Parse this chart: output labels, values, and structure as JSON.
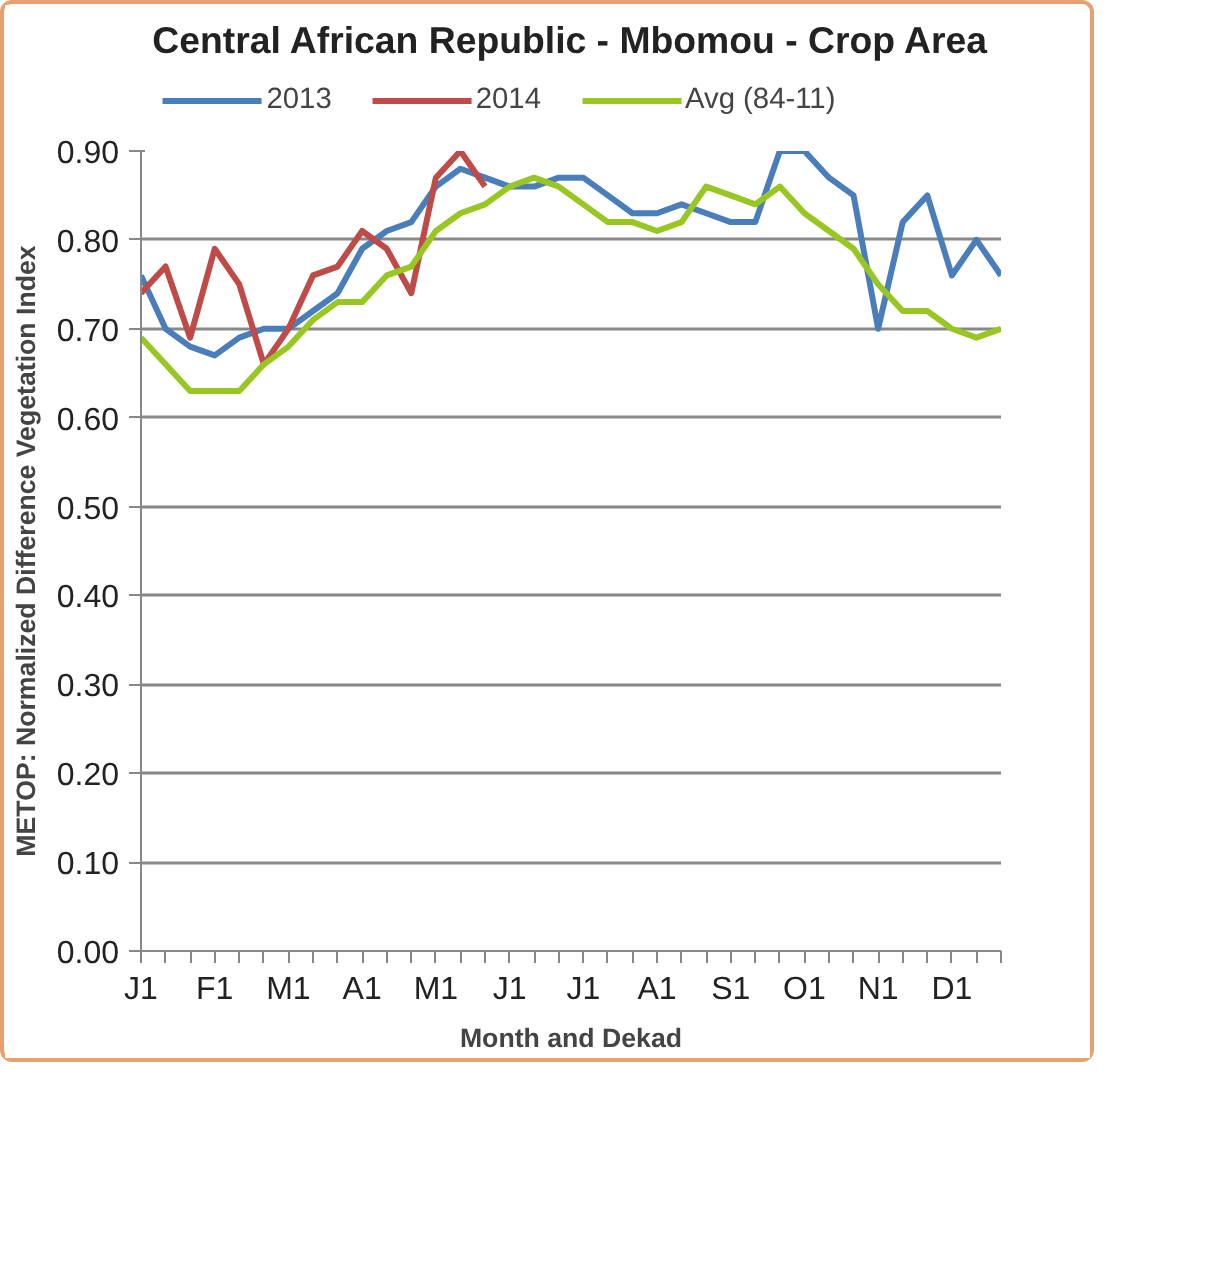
{
  "chart_data": {
    "type": "line",
    "title": "Central African Republic - Mbomou - Crop Area",
    "xlabel": "Month and Dekad",
    "ylabel": "METOP: Normalized Difference Vegetation Index",
    "categories": [
      "J1",
      null,
      null,
      "F1",
      null,
      null,
      "M1",
      null,
      null,
      "A1",
      null,
      null,
      "M1",
      null,
      null,
      "J1",
      null,
      null,
      "J1",
      null,
      null,
      "A1",
      null,
      null,
      "S1",
      null,
      null,
      "O1",
      null,
      null,
      "N1",
      null,
      null,
      "D1",
      null,
      null
    ],
    "series": [
      {
        "name": "2013",
        "color": "#4a7ebb",
        "values": [
          0.76,
          0.7,
          0.68,
          0.67,
          0.69,
          0.7,
          0.7,
          0.72,
          0.74,
          0.79,
          0.81,
          0.82,
          0.86,
          0.88,
          0.87,
          0.86,
          0.86,
          0.87,
          0.87,
          0.85,
          0.83,
          0.83,
          0.84,
          0.83,
          0.82,
          0.82,
          0.9,
          0.9,
          0.87,
          0.85,
          0.7,
          0.82,
          0.85,
          0.76,
          0.8,
          0.76
        ]
      },
      {
        "name": "2014",
        "color": "#be4b48",
        "values": [
          0.74,
          0.77,
          0.69,
          0.79,
          0.75,
          0.66,
          0.7,
          0.76,
          0.77,
          0.81,
          0.79,
          0.74,
          0.87,
          0.9,
          0.86,
          null,
          null,
          null,
          null,
          null,
          null,
          null,
          null,
          null,
          null,
          null,
          null,
          null,
          null,
          null,
          null,
          null,
          null,
          null,
          null,
          null
        ]
      },
      {
        "name": "Avg (84-11)",
        "color": "#98c723",
        "values": [
          0.69,
          0.66,
          0.63,
          0.63,
          0.63,
          0.66,
          0.68,
          0.71,
          0.73,
          0.73,
          0.76,
          0.77,
          0.81,
          0.83,
          0.84,
          0.86,
          0.87,
          0.86,
          0.84,
          0.82,
          0.82,
          0.81,
          0.82,
          0.86,
          0.85,
          0.84,
          0.86,
          0.83,
          0.81,
          0.79,
          0.75,
          0.72,
          0.72,
          0.7,
          0.69,
          0.7
        ]
      }
    ],
    "ylim": [
      0,
      0.9
    ],
    "yticks": [
      {
        "value": 0,
        "label": "0.00"
      },
      {
        "value": 0.1,
        "label": "0.10"
      },
      {
        "value": 0.2,
        "label": "0.20"
      },
      {
        "value": 0.3,
        "label": "0.30"
      },
      {
        "value": 0.4,
        "label": "0.40"
      },
      {
        "value": 0.5,
        "label": "0.50"
      },
      {
        "value": 0.6,
        "label": "0.60"
      },
      {
        "value": 0.7,
        "label": "0.70"
      },
      {
        "value": 0.8,
        "label": "0.80"
      },
      {
        "value": 0.9,
        "label": "0.90"
      }
    ],
    "grid": "y",
    "legend": "top",
    "line_style": "solid",
    "marker": "none"
  }
}
